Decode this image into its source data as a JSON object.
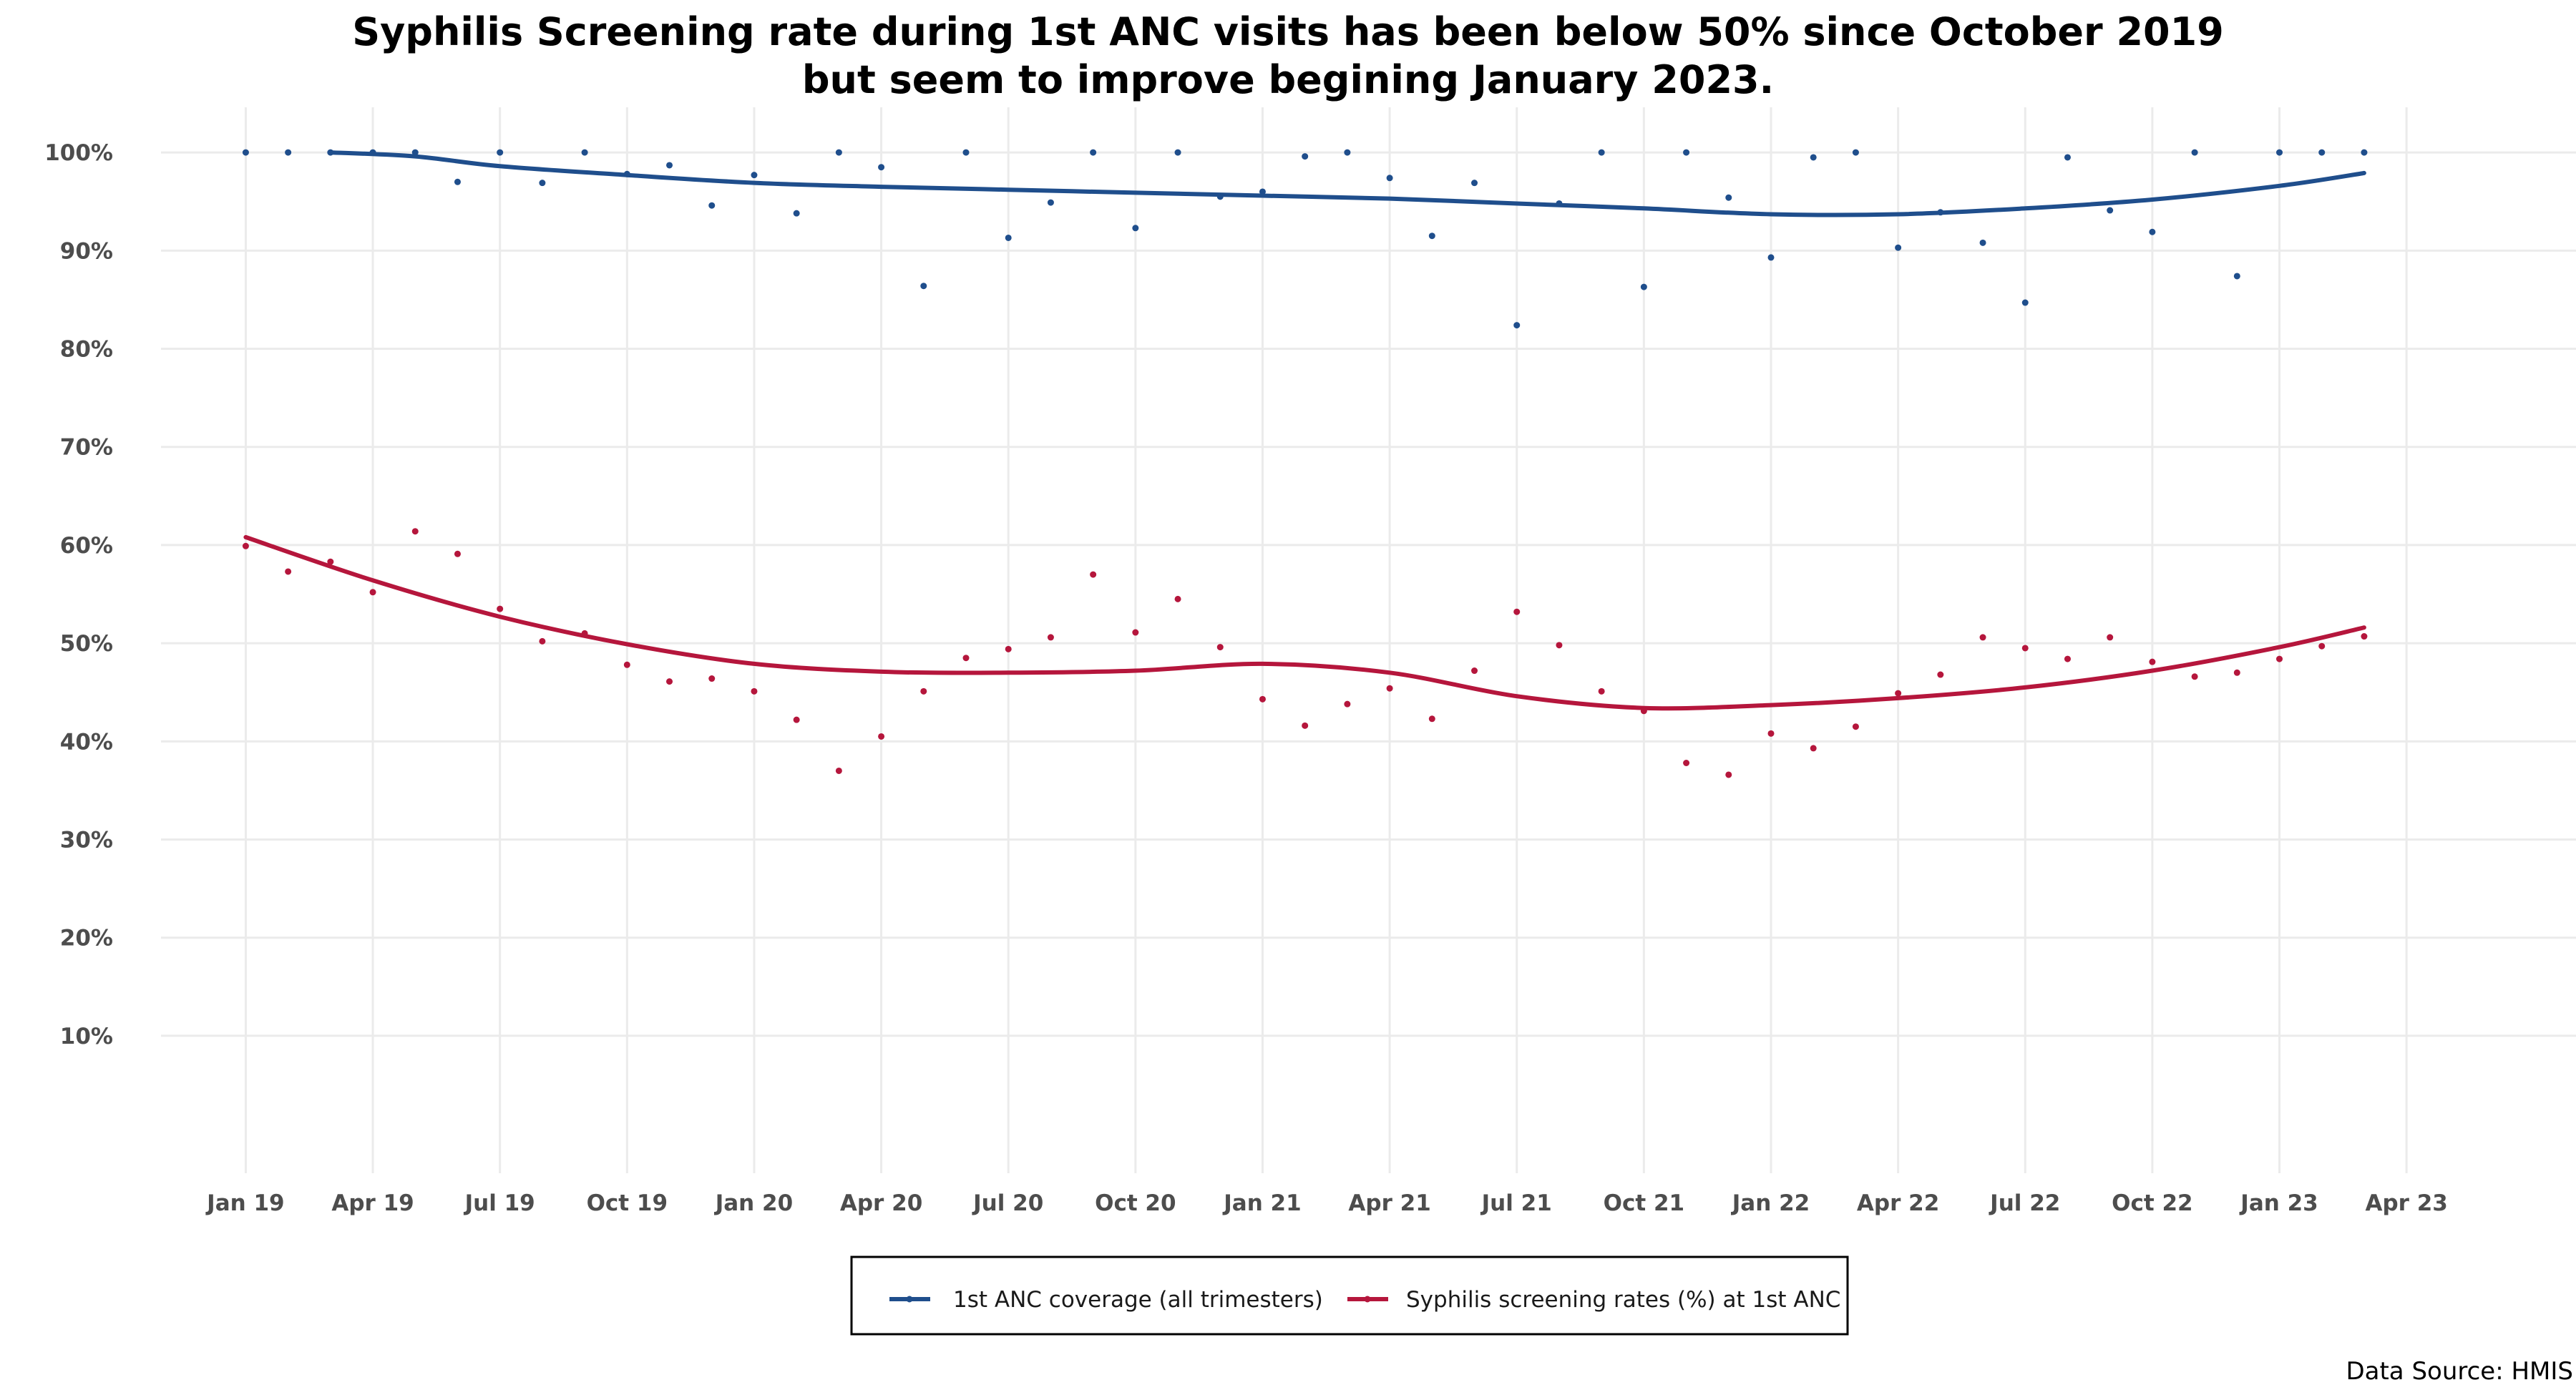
{
  "chart_data": {
    "type": "scatter",
    "title": [
      "Syphilis Screening rate during 1st ANC visits has been below 50% since October 2019",
      "but seem to improve begining January 2023."
    ],
    "xlabel": "",
    "ylabel": "",
    "x_axis": {
      "type": "date",
      "ticks": [
        "2019-01",
        "2019-04",
        "2019-07",
        "2019-10",
        "2020-01",
        "2020-04",
        "2020-07",
        "2020-10",
        "2021-01",
        "2021-04",
        "2021-07",
        "2021-10",
        "2022-01",
        "2022-04",
        "2022-07",
        "2022-10",
        "2023-01",
        "2023-04"
      ],
      "tick_labels": [
        "Jan 19",
        "Apr 19",
        "Jul 19",
        "Oct 19",
        "Jan 20",
        "Apr 20",
        "Jul 20",
        "Oct 20",
        "Jan 21",
        "Apr 21",
        "Jul 21",
        "Oct 21",
        "Jan 22",
        "Apr 22",
        "Jul 22",
        "Oct 22",
        "Jan 23",
        "Apr 23"
      ]
    },
    "y_axis": {
      "ticks": [
        10,
        20,
        30,
        40,
        50,
        60,
        70,
        80,
        90,
        100
      ],
      "tick_labels": [
        "10%",
        "20%",
        "30%",
        "40%",
        "50%",
        "60%",
        "70%",
        "80%",
        "90%",
        "100%"
      ],
      "ylim": [
        -4,
        104.6
      ]
    },
    "grid": true,
    "x": [
      "2019-01",
      "2019-02",
      "2019-03",
      "2019-04",
      "2019-05",
      "2019-06",
      "2019-07",
      "2019-08",
      "2019-09",
      "2019-10",
      "2019-11",
      "2019-12",
      "2020-01",
      "2020-02",
      "2020-03",
      "2020-04",
      "2020-05",
      "2020-06",
      "2020-07",
      "2020-08",
      "2020-09",
      "2020-10",
      "2020-11",
      "2020-12",
      "2021-01",
      "2021-02",
      "2021-03",
      "2021-04",
      "2021-05",
      "2021-06",
      "2021-07",
      "2021-08",
      "2021-09",
      "2021-10",
      "2021-11",
      "2021-12",
      "2022-01",
      "2022-02",
      "2022-03",
      "2022-04",
      "2022-05",
      "2022-06",
      "2022-07",
      "2022-08",
      "2022-09",
      "2022-10",
      "2022-11",
      "2022-12",
      "2023-01",
      "2023-02",
      "2023-03"
    ],
    "series": [
      {
        "name": "1st ANC coverage (all trimesters)",
        "color": "#1f4e8c",
        "values": [
          100,
          100,
          100,
          100,
          100,
          97,
          100,
          96.9,
          100,
          97.8,
          98.7,
          94.6,
          97.7,
          93.8,
          100,
          98.5,
          86.4,
          100,
          91.3,
          94.9,
          100,
          92.3,
          100,
          95.5,
          96.0,
          99.6,
          100,
          97.4,
          91.5,
          96.9,
          82.4,
          94.8,
          100,
          86.3,
          100,
          95.4,
          89.3,
          99.5,
          100,
          90.3,
          93.9,
          90.8,
          84.7,
          99.5,
          94.1,
          91.9,
          100,
          87.4,
          100,
          100,
          100
        ],
        "trend": [
          [
            "2019-03",
            100
          ],
          [
            "2019-05",
            99.6
          ],
          [
            "2019-07",
            98.6
          ],
          [
            "2019-10",
            97.7
          ],
          [
            "2020-01",
            96.9
          ],
          [
            "2020-04",
            96.5
          ],
          [
            "2020-07",
            96.2
          ],
          [
            "2020-10",
            95.9
          ],
          [
            "2021-01",
            95.6
          ],
          [
            "2021-04",
            95.3
          ],
          [
            "2021-07",
            94.8
          ],
          [
            "2021-10",
            94.3
          ],
          [
            "2022-01",
            93.7
          ],
          [
            "2022-04",
            93.7
          ],
          [
            "2022-07",
            94.3
          ],
          [
            "2022-10",
            95.2
          ],
          [
            "2023-01",
            96.6
          ],
          [
            "2023-03",
            97.9
          ]
        ]
      },
      {
        "name": "Syphilis screening rates (%) at 1st ANC",
        "color": "#b5163c",
        "values": [
          59.9,
          57.3,
          58.3,
          55.2,
          61.4,
          59.1,
          53.5,
          50.2,
          51.0,
          47.8,
          46.1,
          46.4,
          45.1,
          42.2,
          37.0,
          40.5,
          45.1,
          48.5,
          49.4,
          50.6,
          57.0,
          51.1,
          54.5,
          49.6,
          44.3,
          41.6,
          43.8,
          45.4,
          42.3,
          47.2,
          53.2,
          49.8,
          45.1,
          43.1,
          37.8,
          36.6,
          40.8,
          39.3,
          41.5,
          44.9,
          46.8,
          50.6,
          49.5,
          48.4,
          50.6,
          48.1,
          46.6,
          47.0,
          48.4,
          49.7,
          50.7
        ],
        "trend": [
          [
            "2019-01",
            60.8
          ],
          [
            "2019-04",
            56.4
          ],
          [
            "2019-07",
            52.7
          ],
          [
            "2019-10",
            49.9
          ],
          [
            "2020-01",
            47.9
          ],
          [
            "2020-04",
            47.1
          ],
          [
            "2020-07",
            47.0
          ],
          [
            "2020-10",
            47.2
          ],
          [
            "2021-01",
            47.9
          ],
          [
            "2021-04",
            47.0
          ],
          [
            "2021-07",
            44.6
          ],
          [
            "2021-10",
            43.4
          ],
          [
            "2022-01",
            43.7
          ],
          [
            "2022-04",
            44.4
          ],
          [
            "2022-07",
            45.5
          ],
          [
            "2022-10",
            47.2
          ],
          [
            "2023-01",
            49.6
          ],
          [
            "2023-03",
            51.6
          ]
        ]
      }
    ],
    "legend": {
      "position": "bottom",
      "entries": [
        "1st ANC coverage (all trimesters)",
        "Syphilis screening rates (%) at 1st ANC"
      ]
    },
    "caption": "Data Source: HMIS"
  }
}
